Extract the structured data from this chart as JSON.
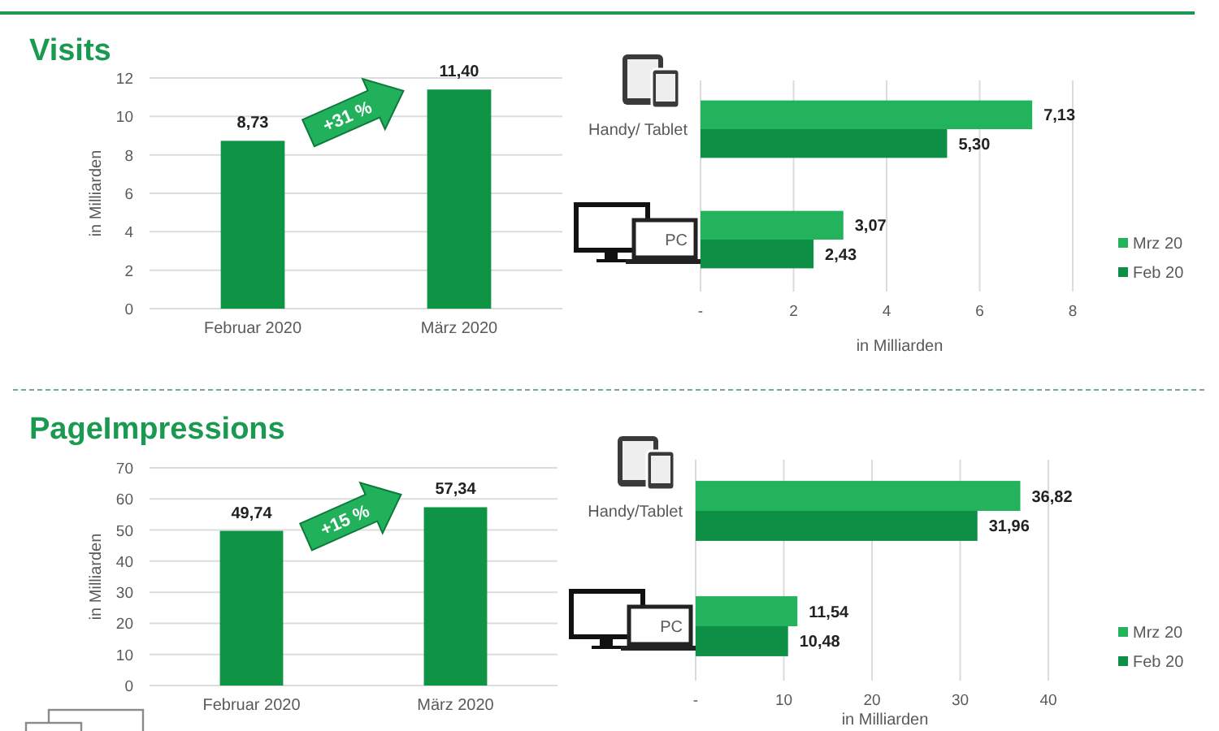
{
  "chart_data": [
    {
      "type": "bar",
      "title": "Visits",
      "categories": [
        "Februar 2020",
        "März 2020"
      ],
      "values": [
        8.73,
        11.4
      ],
      "value_labels": [
        "8,73",
        "11,40"
      ],
      "color": "#0f9446",
      "ylim": [
        0,
        12
      ],
      "yticks": [
        0,
        2,
        4,
        6,
        8,
        10,
        12
      ],
      "ylabel": "in Milliarden",
      "grid": "y",
      "annotations": [
        "+31 %"
      ]
    },
    {
      "type": "bar",
      "orientation": "horizontal",
      "categories": [
        "Handy/ Tablet",
        "PC"
      ],
      "series": [
        {
          "name": "Mrz 20",
          "color": "#22b35c",
          "values": [
            7.13,
            3.07
          ],
          "value_labels": [
            "7,13",
            "3,07"
          ]
        },
        {
          "name": "Feb 20",
          "color": "#0d8f46",
          "values": [
            5.3,
            2.43
          ],
          "value_labels": [
            "5,30",
            "2,43"
          ]
        }
      ],
      "xlim": [
        0,
        8
      ],
      "xticks": [
        {
          "value": 0,
          "label": "-"
        },
        2,
        4,
        6,
        8
      ],
      "xlabel": "in Milliarden",
      "grid": "x",
      "legend": "right"
    },
    {
      "type": "bar",
      "title": "PageImpressions",
      "categories": [
        "Februar 2020",
        "März 2020"
      ],
      "values": [
        49.74,
        57.34
      ],
      "value_labels": [
        "49,74",
        "57,34"
      ],
      "color": "#0f9446",
      "ylim": [
        0,
        70
      ],
      "yticks": [
        0,
        10,
        20,
        30,
        40,
        50,
        60,
        70
      ],
      "ylabel": "in Milliarden",
      "grid": "y",
      "annotations": [
        "+15 %"
      ]
    },
    {
      "type": "bar",
      "orientation": "horizontal",
      "categories": [
        "Handy/Tablet",
        "PC"
      ],
      "series": [
        {
          "name": "Mrz 20",
          "color": "#22b35c",
          "values": [
            36.82,
            11.54
          ],
          "value_labels": [
            "36,82",
            "11,54"
          ]
        },
        {
          "name": "Feb 20",
          "color": "#0d8f46",
          "values": [
            31.96,
            10.48
          ],
          "value_labels": [
            "31,96",
            "10,48"
          ]
        }
      ],
      "xlim": [
        0,
        40
      ],
      "xticks": [
        {
          "value": 0,
          "label": "-"
        },
        10,
        20,
        30,
        40
      ],
      "xlabel": "in Milliarden",
      "grid": "x",
      "legend": "right"
    }
  ]
}
